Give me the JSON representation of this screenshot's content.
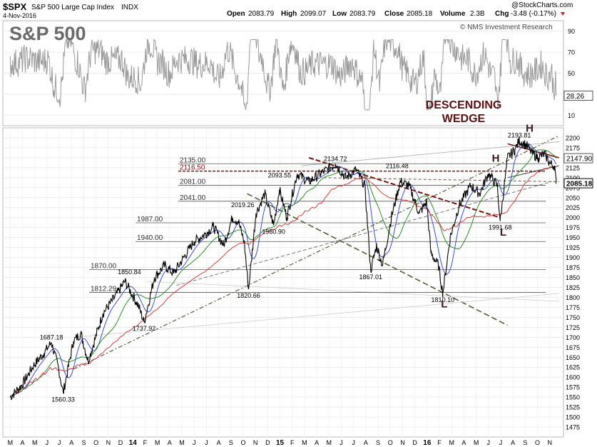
{
  "header": {
    "symbol": "$SPX",
    "name": "S&P 500 Large Cap Index",
    "exchange": "INDX",
    "date": "4-Nov-2016",
    "open_label": "Open",
    "open": "2083.79",
    "high_label": "High",
    "high": "2099.07",
    "low_label": "Low",
    "low": "2083.79",
    "close_label": "Close",
    "close": "2085.18",
    "volume_label": "Volume",
    "volume": "2.3B",
    "chg_label": "Chg",
    "chg": "-3.48 (-0.17%)",
    "source": "@StockCharts.com"
  },
  "overlay": {
    "big_title": "S&P 500",
    "credit": "© NMS Investment Research",
    "pattern_title_1": "DESCENDING",
    "pattern_title_2": "WEDGE"
  },
  "colors": {
    "price": "#000000",
    "ma_blue": "#3a4fc8",
    "ma_green": "#2e8b2e",
    "ma_red": "#d04040",
    "rsi": "#9a9a9a",
    "trend_olive": "#5a5a3a",
    "resistance_dark_red": "#7a1010",
    "pattern_text": "#5a1010",
    "hl_text": "#3a1a1a"
  },
  "chart_data": [
    {
      "type": "line",
      "title": "RSI panel",
      "y_ticks": [
        10,
        30,
        50,
        70,
        90
      ],
      "current_value": "28.26",
      "ylim": [
        0,
        100
      ]
    },
    {
      "type": "line",
      "title": "",
      "ylim": [
        1450,
        2225
      ],
      "y_ticks": [
        1475,
        1500,
        1525,
        1550,
        1575,
        1600,
        1625,
        1650,
        1675,
        1700,
        1725,
        1750,
        1775,
        1800,
        1825,
        1850,
        1875,
        1900,
        1925,
        1950,
        1975,
        2000,
        2025,
        2050,
        2075,
        2100,
        2125,
        2150,
        2175,
        2200
      ],
      "x_months": [
        "M",
        "A",
        "M",
        "J",
        "J",
        "A",
        "S",
        "O",
        "N",
        "D",
        "14",
        "F",
        "M",
        "A",
        "M",
        "J",
        "J",
        "A",
        "S",
        "O",
        "N",
        "D",
        "15",
        "F",
        "M",
        "A",
        "M",
        "J",
        "J",
        "A",
        "S",
        "O",
        "N",
        "D",
        "16",
        "F",
        "M",
        "A",
        "M",
        "J",
        "J",
        "A",
        "S",
        "O",
        "N"
      ],
      "last_price": "2085.18",
      "prev_price": "2147.90",
      "price_points": [
        [
          2013.17,
          1550
        ],
        [
          2013.25,
          1580
        ],
        [
          2013.33,
          1630
        ],
        [
          2013.4,
          1660
        ],
        [
          2013.45,
          1687.18
        ],
        [
          2013.5,
          1620
        ],
        [
          2013.53,
          1560.33
        ],
        [
          2013.6,
          1690
        ],
        [
          2013.65,
          1710
        ],
        [
          2013.7,
          1640
        ],
        [
          2013.75,
          1700
        ],
        [
          2013.8,
          1760
        ],
        [
          2013.88,
          1800
        ],
        [
          2013.95,
          1840
        ],
        [
          2014.04,
          1780
        ],
        [
          2014.08,
          1737.92
        ],
        [
          2014.15,
          1850
        ],
        [
          2014.22,
          1880
        ],
        [
          2014.28,
          1860
        ],
        [
          2014.35,
          1900
        ],
        [
          2014.42,
          1940
        ],
        [
          2014.5,
          1960
        ],
        [
          2014.55,
          1978
        ],
        [
          2014.62,
          1930
        ],
        [
          2014.68,
          2000
        ],
        [
          2014.72,
          1990
        ],
        [
          2014.76,
          1940
        ],
        [
          2014.79,
          1820.66
        ],
        [
          2014.84,
          2010
        ],
        [
          2014.9,
          2060
        ],
        [
          2014.96,
          1980.9
        ],
        [
          2015.0,
          2070
        ],
        [
          2015.05,
          2000
        ],
        [
          2015.12,
          2110
        ],
        [
          2015.2,
          2090
        ],
        [
          2015.28,
          2110
        ],
        [
          2015.38,
          2134.72
        ],
        [
          2015.45,
          2100
        ],
        [
          2015.52,
          2120
        ],
        [
          2015.58,
          2080
        ],
        [
          2015.62,
          1867.01
        ],
        [
          2015.66,
          1930
        ],
        [
          2015.7,
          1880
        ],
        [
          2015.76,
          2000
        ],
        [
          2015.82,
          2090
        ],
        [
          2015.88,
          2080
        ],
        [
          2015.95,
          2010
        ],
        [
          2016.0,
          2040
        ],
        [
          2016.03,
          1910
        ],
        [
          2016.08,
          1880
        ],
        [
          2016.11,
          1810.1
        ],
        [
          2016.16,
          1950
        ],
        [
          2016.22,
          2030
        ],
        [
          2016.3,
          2080
        ],
        [
          2016.36,
          2060
        ],
        [
          2016.42,
          2110
        ],
        [
          2016.48,
          2080
        ],
        [
          2016.5,
          1991.68
        ],
        [
          2016.55,
          2150
        ],
        [
          2016.6,
          2170
        ],
        [
          2016.63,
          2193.81
        ],
        [
          2016.68,
          2180
        ],
        [
          2016.72,
          2160
        ],
        [
          2016.76,
          2150
        ],
        [
          2016.8,
          2160
        ],
        [
          2016.84,
          2135
        ],
        [
          2016.87,
          2130
        ],
        [
          2016.88,
          2085.18
        ]
      ],
      "horizontal_levels": [
        {
          "label": "2135.00",
          "value": 2135
        },
        {
          "label": "2116.50",
          "value": 2116.5
        },
        {
          "label": "2081.00",
          "value": 2081
        },
        {
          "label": "2041.00",
          "value": 2041
        },
        {
          "label": "1987.00",
          "value": 1987
        },
        {
          "label": "1940.00",
          "value": 1940
        },
        {
          "label": "1870.00",
          "value": 1870
        },
        {
          "label": "1812.29",
          "value": 1812.29
        }
      ],
      "point_labels": [
        {
          "label": "1687.18",
          "x": 2013.45,
          "y": 1687.18
        },
        {
          "label": "1560.33",
          "x": 2013.53,
          "y": 1560.33
        },
        {
          "label": "1850.84",
          "x": 2013.98,
          "y": 1850.84
        },
        {
          "label": "1737.92",
          "x": 2014.08,
          "y": 1737.92
        },
        {
          "label": "1820.66",
          "x": 2014.79,
          "y": 1820.66
        },
        {
          "label": "2019.26",
          "x": 2014.75,
          "y": 2019.26
        },
        {
          "label": "1980.90",
          "x": 2014.96,
          "y": 1980.9
        },
        {
          "label": "2093.55",
          "x": 2015.0,
          "y": 2093.55
        },
        {
          "label": "2134.72",
          "x": 2015.38,
          "y": 2134.72
        },
        {
          "label": "1867.01",
          "x": 2015.62,
          "y": 1867.01
        },
        {
          "label": "2116.48",
          "x": 2015.8,
          "y": 2116.48
        },
        {
          "label": "1810.10",
          "x": 2016.11,
          "y": 1810.1
        },
        {
          "label": "1991.68",
          "x": 2016.5,
          "y": 1991.68
        },
        {
          "label": "2193.81",
          "x": 2016.63,
          "y": 2193.81
        }
      ],
      "pattern_letters": [
        {
          "label": "H",
          "x": 2016.7,
          "y": 2215
        },
        {
          "label": "H",
          "x": 2016.47,
          "y": 2140
        },
        {
          "label": "L",
          "x": 2016.52,
          "y": 1955
        },
        {
          "label": "L",
          "x": 2016.12,
          "y": 1775
        }
      ]
    }
  ]
}
